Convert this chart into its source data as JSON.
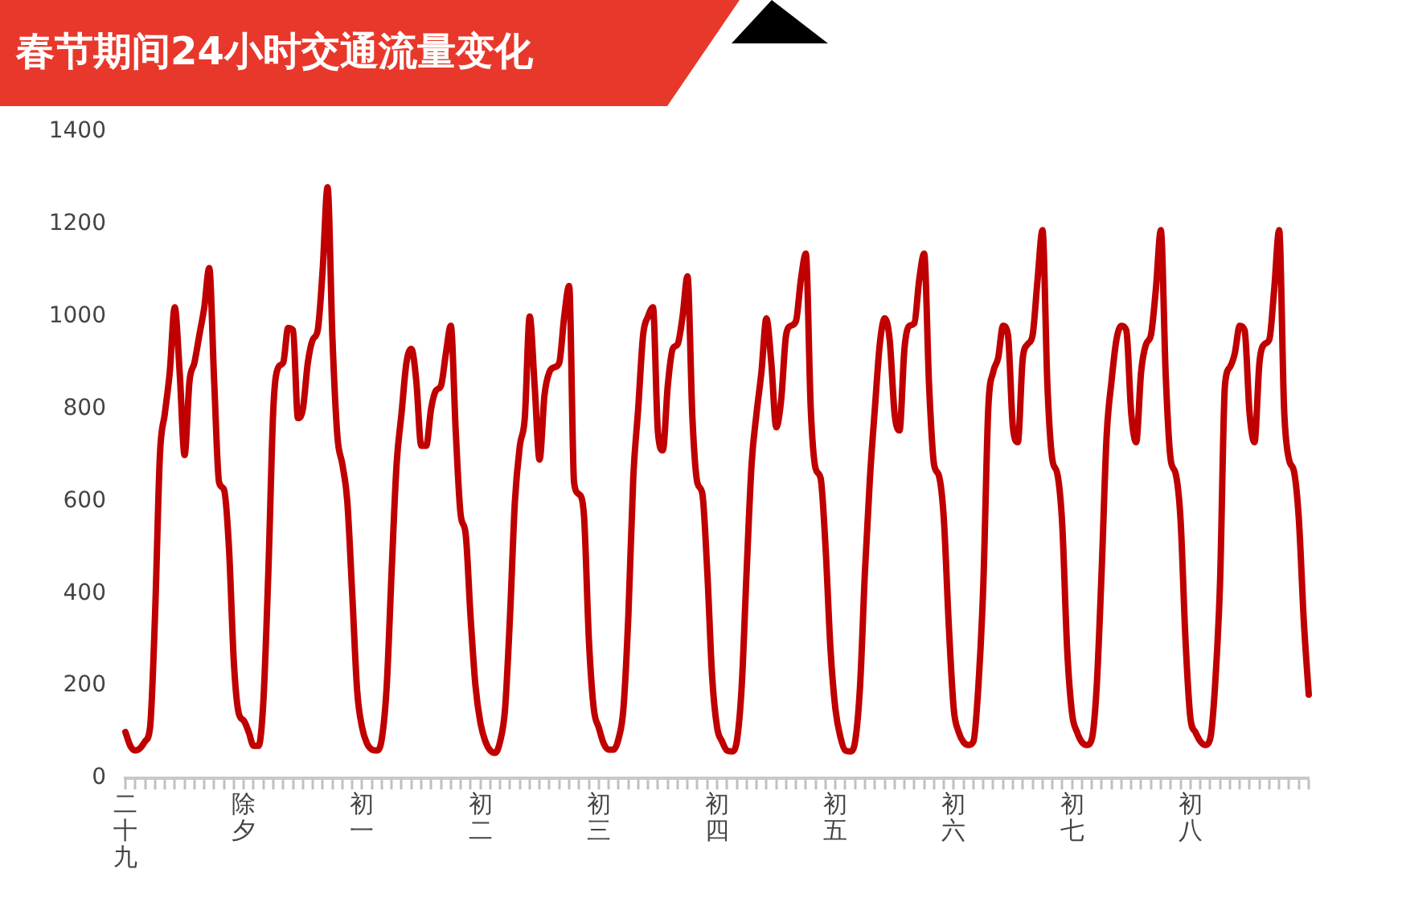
{
  "chart_data": {
    "type": "line",
    "title": "春节期间24小时交通流量变化",
    "categories": [
      "二十九",
      null,
      null,
      null,
      null,
      null,
      null,
      null,
      null,
      null,
      null,
      null,
      null,
      null,
      null,
      null,
      null,
      null,
      null,
      null,
      null,
      null,
      null,
      null,
      "除夕",
      null,
      null,
      null,
      null,
      null,
      null,
      null,
      null,
      null,
      null,
      null,
      null,
      null,
      null,
      null,
      null,
      null,
      null,
      null,
      null,
      null,
      null,
      null,
      "初一",
      null,
      null,
      null,
      null,
      null,
      null,
      null,
      null,
      null,
      null,
      null,
      null,
      null,
      null,
      null,
      null,
      null,
      null,
      null,
      null,
      null,
      null,
      null,
      "初二",
      null,
      null,
      null,
      null,
      null,
      null,
      null,
      null,
      null,
      null,
      null,
      null,
      null,
      null,
      null,
      null,
      null,
      null,
      null,
      null,
      null,
      null,
      null,
      "初三",
      null,
      null,
      null,
      null,
      null,
      null,
      null,
      null,
      null,
      null,
      null,
      null,
      null,
      null,
      null,
      null,
      null,
      null,
      null,
      null,
      null,
      null,
      null,
      "初四",
      null,
      null,
      null,
      null,
      null,
      null,
      null,
      null,
      null,
      null,
      null,
      null,
      null,
      null,
      null,
      null,
      null,
      null,
      null,
      null,
      null,
      null,
      null,
      "初五",
      null,
      null,
      null,
      null,
      null,
      null,
      null,
      null,
      null,
      null,
      null,
      null,
      null,
      null,
      null,
      null,
      null,
      null,
      null,
      null,
      null,
      null,
      null,
      "初六",
      null,
      null,
      null,
      null,
      null,
      null,
      null,
      null,
      null,
      null,
      null,
      null,
      null,
      null,
      null,
      null,
      null,
      null,
      null,
      null,
      null,
      null,
      null,
      "初七",
      null,
      null,
      null,
      null,
      null,
      null,
      null,
      null,
      null,
      null,
      null,
      null,
      null,
      null,
      null,
      null,
      null,
      null,
      null,
      null,
      null,
      null,
      null,
      "初八",
      null,
      null,
      null,
      null,
      null,
      null,
      null,
      null,
      null,
      null,
      null,
      null,
      null,
      null,
      null,
      null,
      null,
      null,
      null,
      null,
      null,
      null,
      null,
      null
    ],
    "series": [
      {
        "color": "#c00000",
        "values": [
          100,
          70,
          60,
          65,
          80,
          110,
          350,
          700,
          790,
          880,
          1020,
          880,
          700,
          860,
          900,
          960,
          1020,
          1105,
          860,
          641,
          625,
          500,
          250,
          140,
          125,
          100,
          70,
          70,
          170,
          450,
          800,
          890,
          900,
          975,
          970,
          780,
          800,
          900,
          950,
          970,
          1100,
          1280,
          950,
          740,
          680,
          600,
          400,
          190,
          110,
          75,
          62,
          60,
          85,
          200,
          450,
          680,
          790,
          900,
          930,
          860,
          720,
          720,
          800,
          840,
          850,
          920,
          980,
          750,
          570,
          530,
          350,
          200,
          120,
          80,
          60,
          55,
          80,
          150,
          350,
          600,
          720,
          780,
          1000,
          850,
          690,
          830,
          880,
          890,
          900,
          1000,
          1066,
          640,
          615,
          570,
          300,
          150,
          110,
          75,
          62,
          62,
          85,
          150,
          350,
          650,
          800,
          960,
          1000,
          1020,
          750,
          710,
          850,
          930,
          940,
          1000,
          1087,
          780,
          640,
          617,
          450,
          220,
          110,
          80,
          60,
          58,
          80,
          200,
          450,
          680,
          790,
          880,
          996,
          900,
          760,
          820,
          960,
          980,
          990,
          1080,
          1136,
          800,
          670,
          650,
          500,
          280,
          150,
          90,
          60,
          58,
          80,
          200,
          450,
          650,
          800,
          940,
          996,
          950,
          790,
          753,
          930,
          980,
          985,
          1080,
          1136,
          850,
          680,
          655,
          560,
          330,
          150,
          100,
          78,
          72,
          80,
          200,
          420,
          800,
          880,
          910,
          980,
          960,
          760,
          728,
          910,
          940,
          960,
          1080,
          1187,
          850,
          690,
          660,
          550,
          280,
          140,
          100,
          78,
          72,
          85,
          200,
          450,
          740,
          860,
          950,
          980,
          970,
          790,
          728,
          880,
          940,
          960,
          1060,
          1187,
          870,
          690,
          660,
          560,
          300,
          130,
          100,
          80,
          72,
          85,
          200,
          420,
          850,
          890,
          920,
          980,
          970,
          790,
          728,
          900,
          940,
          950,
          1060,
          1187,
          800,
          690,
          665,
          560,
          340,
          181
        ]
      }
    ],
    "ylim": [
      0,
      1400
    ],
    "yticks": [
      0,
      200,
      400,
      600,
      800,
      1000,
      1200,
      1400
    ],
    "marker": "none",
    "line_style": "solid"
  }
}
